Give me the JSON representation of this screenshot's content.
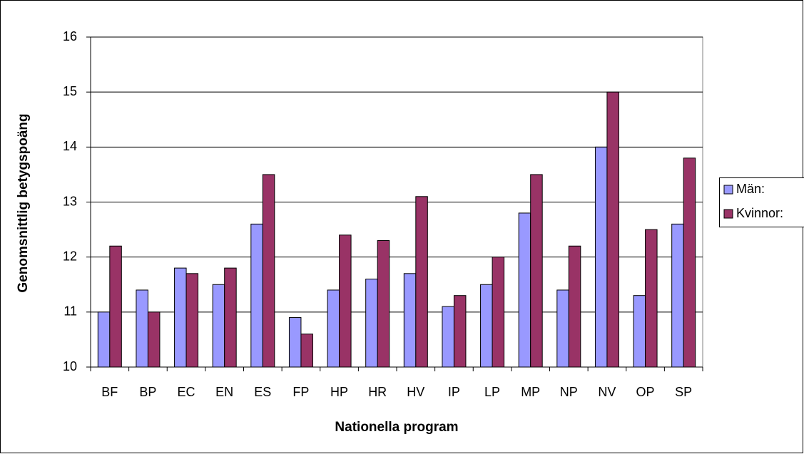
{
  "chart_data": {
    "type": "bar",
    "categories": [
      "BF",
      "BP",
      "EC",
      "EN",
      "ES",
      "FP",
      "HP",
      "HR",
      "HV",
      "IP",
      "LP",
      "MP",
      "NP",
      "NV",
      "OP",
      "SP"
    ],
    "series": [
      {
        "name": "Män:",
        "color": "#9999ff",
        "values": [
          11.0,
          11.4,
          11.8,
          11.5,
          12.6,
          10.9,
          11.4,
          11.6,
          11.7,
          11.1,
          11.5,
          12.8,
          11.4,
          14.0,
          11.3,
          12.6
        ]
      },
      {
        "name": "Kvinnor:",
        "color": "#993366",
        "values": [
          12.2,
          11.0,
          11.7,
          11.8,
          13.5,
          10.6,
          12.4,
          12.3,
          13.1,
          11.3,
          12.0,
          13.5,
          12.2,
          15.0,
          12.5,
          13.8
        ]
      }
    ],
    "xlabel": "Nationella program",
    "ylabel": "Genomsnittlig betygspoäng",
    "ylim": [
      10,
      16
    ],
    "yticks": [
      10,
      11,
      12,
      13,
      14,
      15,
      16
    ],
    "grid": true,
    "legend": "right"
  }
}
